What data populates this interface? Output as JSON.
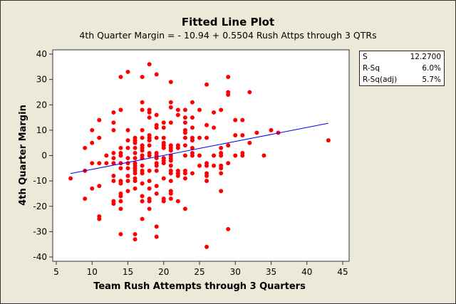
{
  "chart_data": {
    "type": "scatter",
    "title": "Fitted Line Plot",
    "subtitle": "4th Quarter Margin =  - 10.94 + 0.5504 Rush Attps through 3 QTRs",
    "xlabel": "Team Rush Attempts through 3 Quarters",
    "ylabel": "4th Quarter Margin",
    "xlim": [
      5,
      45
    ],
    "ylim": [
      -40,
      40
    ],
    "xticks": [
      5,
      10,
      15,
      20,
      25,
      30,
      35,
      40,
      45
    ],
    "yticks": [
      -40,
      -30,
      -20,
      -10,
      0,
      10,
      20,
      30,
      40
    ],
    "grid": false,
    "point_color": "#ff0000",
    "line_color": "#0000ff",
    "fit": {
      "intercept": -10.94,
      "slope": 0.5504,
      "x_range": [
        7,
        43
      ]
    },
    "points": [
      [
        7,
        -9
      ],
      [
        9,
        3
      ],
      [
        9,
        -6
      ],
      [
        9,
        -17
      ],
      [
        10,
        10
      ],
      [
        10,
        5
      ],
      [
        10,
        -3
      ],
      [
        10,
        -13
      ],
      [
        11,
        14
      ],
      [
        11,
        7
      ],
      [
        11,
        -3
      ],
      [
        11,
        -12
      ],
      [
        11,
        -24
      ],
      [
        11,
        -25
      ],
      [
        12,
        0
      ],
      [
        12,
        -3
      ],
      [
        13,
        17
      ],
      [
        13,
        10
      ],
      [
        13,
        13
      ],
      [
        13,
        1
      ],
      [
        13,
        -1
      ],
      [
        13,
        -3
      ],
      [
        13,
        -8
      ],
      [
        13,
        -10
      ],
      [
        13,
        -18
      ],
      [
        13,
        -19
      ],
      [
        14,
        31
      ],
      [
        14,
        18
      ],
      [
        14,
        3
      ],
      [
        14,
        1
      ],
      [
        14,
        0
      ],
      [
        14,
        -3
      ],
      [
        14,
        -5
      ],
      [
        14,
        -10
      ],
      [
        14,
        -11
      ],
      [
        14,
        -15
      ],
      [
        14,
        -16
      ],
      [
        14,
        -18
      ],
      [
        14,
        -21
      ],
      [
        14,
        -31
      ],
      [
        15,
        33
      ],
      [
        15,
        10
      ],
      [
        15,
        6
      ],
      [
        15,
        3
      ],
      [
        15,
        -1
      ],
      [
        15,
        -3
      ],
      [
        15,
        -5
      ],
      [
        15,
        -8
      ],
      [
        15,
        -10
      ],
      [
        15,
        -14
      ],
      [
        16,
        7
      ],
      [
        16,
        6
      ],
      [
        16,
        5
      ],
      [
        16,
        3
      ],
      [
        16,
        1
      ],
      [
        16,
        -1
      ],
      [
        16,
        -3
      ],
      [
        16,
        -4
      ],
      [
        16,
        -5
      ],
      [
        16,
        -6
      ],
      [
        16,
        -7
      ],
      [
        16,
        -9
      ],
      [
        16,
        -10
      ],
      [
        16,
        -13
      ],
      [
        16,
        -31
      ],
      [
        16,
        -33
      ],
      [
        17,
        31
      ],
      [
        17,
        21
      ],
      [
        17,
        18
      ],
      [
        17,
        10
      ],
      [
        17,
        7
      ],
      [
        17,
        4
      ],
      [
        17,
        3
      ],
      [
        17,
        2
      ],
      [
        17,
        0
      ],
      [
        17,
        -1
      ],
      [
        17,
        -4
      ],
      [
        17,
        -6
      ],
      [
        17,
        -7
      ],
      [
        17,
        -11
      ],
      [
        17,
        -16
      ],
      [
        17,
        -18
      ],
      [
        17,
        -25
      ],
      [
        18,
        36
      ],
      [
        18,
        18
      ],
      [
        18,
        17
      ],
      [
        18,
        15
      ],
      [
        18,
        8
      ],
      [
        18,
        7
      ],
      [
        18,
        6
      ],
      [
        18,
        4
      ],
      [
        18,
        1
      ],
      [
        18,
        0
      ],
      [
        18,
        -6
      ],
      [
        18,
        -10
      ],
      [
        18,
        -13
      ],
      [
        18,
        -17
      ],
      [
        18,
        -18
      ],
      [
        18,
        -21
      ],
      [
        19,
        32
      ],
      [
        19,
        16
      ],
      [
        19,
        12
      ],
      [
        19,
        11
      ],
      [
        19,
        7
      ],
      [
        19,
        1
      ],
      [
        19,
        0
      ],
      [
        19,
        -1
      ],
      [
        19,
        -3
      ],
      [
        19,
        -4
      ],
      [
        19,
        -6
      ],
      [
        19,
        -12
      ],
      [
        19,
        -15
      ],
      [
        19,
        -28
      ],
      [
        19,
        -32
      ],
      [
        20,
        13
      ],
      [
        20,
        11
      ],
      [
        20,
        7
      ],
      [
        20,
        5
      ],
      [
        20,
        4
      ],
      [
        20,
        3
      ],
      [
        20,
        -1
      ],
      [
        20,
        -2
      ],
      [
        20,
        -3
      ],
      [
        20,
        -9
      ],
      [
        20,
        -17
      ],
      [
        20,
        -18
      ],
      [
        21,
        29
      ],
      [
        21,
        21
      ],
      [
        21,
        19
      ],
      [
        21,
        13
      ],
      [
        21,
        4
      ],
      [
        21,
        3
      ],
      [
        21,
        2
      ],
      [
        21,
        0
      ],
      [
        21,
        -1
      ],
      [
        21,
        -2
      ],
      [
        21,
        -4
      ],
      [
        21,
        -6
      ],
      [
        21,
        -7
      ],
      [
        21,
        -10
      ],
      [
        21,
        -14
      ],
      [
        21,
        -15
      ],
      [
        21,
        -17
      ],
      [
        22,
        18
      ],
      [
        22,
        16
      ],
      [
        22,
        4
      ],
      [
        22,
        3
      ],
      [
        22,
        -6
      ],
      [
        22,
        -7
      ],
      [
        22,
        -8
      ],
      [
        22,
        -18
      ],
      [
        23,
        18
      ],
      [
        23,
        15
      ],
      [
        23,
        13
      ],
      [
        23,
        10
      ],
      [
        23,
        9
      ],
      [
        23,
        7
      ],
      [
        23,
        4
      ],
      [
        23,
        0
      ],
      [
        23,
        -6
      ],
      [
        23,
        -7
      ],
      [
        23,
        -9
      ],
      [
        23,
        -21
      ],
      [
        24,
        21
      ],
      [
        24,
        15
      ],
      [
        24,
        11
      ],
      [
        24,
        7
      ],
      [
        24,
        6
      ],
      [
        24,
        3
      ],
      [
        24,
        1
      ],
      [
        24,
        0
      ],
      [
        24,
        -7
      ],
      [
        25,
        18
      ],
      [
        25,
        7
      ],
      [
        25,
        0
      ],
      [
        25,
        -4
      ],
      [
        26,
        28
      ],
      [
        26,
        12
      ],
      [
        26,
        7
      ],
      [
        26,
        -3
      ],
      [
        26,
        -4
      ],
      [
        26,
        -7
      ],
      [
        26,
        -8
      ],
      [
        26,
        -10
      ],
      [
        26,
        -36
      ],
      [
        27,
        17
      ],
      [
        27,
        11
      ],
      [
        27,
        0
      ],
      [
        27,
        -4
      ],
      [
        28,
        18
      ],
      [
        28,
        3
      ],
      [
        28,
        1
      ],
      [
        28,
        0
      ],
      [
        28,
        -4
      ],
      [
        28,
        -5
      ],
      [
        28,
        -7
      ],
      [
        28,
        -14
      ],
      [
        29,
        31
      ],
      [
        29,
        25
      ],
      [
        29,
        24
      ],
      [
        29,
        4
      ],
      [
        29,
        -3
      ],
      [
        29,
        -29
      ],
      [
        30,
        14
      ],
      [
        30,
        8
      ],
      [
        30,
        0
      ],
      [
        31,
        14
      ],
      [
        31,
        8
      ],
      [
        31,
        1
      ],
      [
        31,
        0
      ],
      [
        32,
        25
      ],
      [
        32,
        5
      ],
      [
        33,
        9
      ],
      [
        34,
        0
      ],
      [
        35,
        10
      ],
      [
        36,
        9
      ],
      [
        43,
        6
      ]
    ]
  },
  "stats": [
    {
      "label": "S",
      "value": "12.2700"
    },
    {
      "label": "R-Sq",
      "value": "6.0%"
    },
    {
      "label": "R-Sq(adj)",
      "value": "5.7%"
    }
  ]
}
